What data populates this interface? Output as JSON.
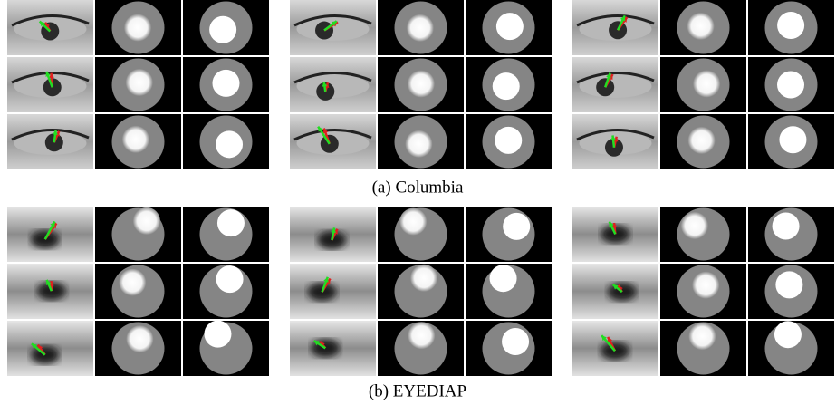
{
  "panels": [
    {
      "caption": "(a) Columbia"
    },
    {
      "caption": "(b) EYEDIAP"
    }
  ]
}
